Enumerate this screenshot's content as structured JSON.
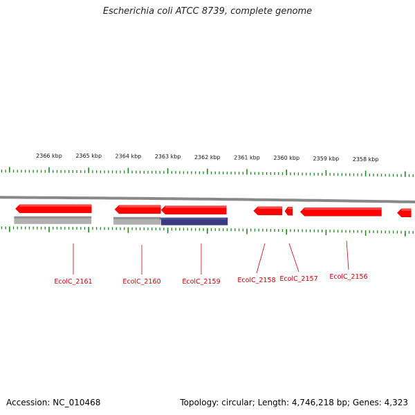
{
  "title": "Escherichia coli ATCC 8739, complete genome",
  "footer": {
    "accession_label": "Accession:",
    "accession": "NC_010468",
    "topology_label": "Topology:",
    "topology": "circular",
    "length_label": "Length:",
    "length": "4,746,218 bp",
    "genes_label": "Genes:",
    "genes": "4,323"
  },
  "colors": {
    "gene_forward": "#ff0000",
    "gene_highlight": "#ff6666",
    "backbone": "#888888",
    "tick": "#1a8a1a",
    "label": "#cc0000",
    "rna_grey": "#b0b0b0",
    "rna_blue": "#3a3a80"
  },
  "scale": {
    "unit": "kbp",
    "ticks": [
      {
        "kbp": 2366,
        "label": "2366 kbp"
      },
      {
        "kbp": 2365,
        "label": "2365 kbp"
      },
      {
        "kbp": 2364,
        "label": "2364 kbp"
      },
      {
        "kbp": 2363,
        "label": "2363 kbp"
      },
      {
        "kbp": 2362,
        "label": "2362 kbp"
      },
      {
        "kbp": 2361,
        "label": "2361 kbp"
      },
      {
        "kbp": 2360,
        "label": "2360 kbp"
      },
      {
        "kbp": 2359,
        "label": "2359 kbp"
      },
      {
        "kbp": 2358,
        "label": "2358 kbp"
      }
    ]
  },
  "genes": [
    {
      "name": "EcolC_2161",
      "start_kbp": 2364.93,
      "end_kbp": 2366.85,
      "strand": "reverse",
      "feature": "grey"
    },
    {
      "name": "EcolC_2160",
      "start_kbp": 2363.18,
      "end_kbp": 2364.34,
      "strand": "reverse",
      "feature": "grey"
    },
    {
      "name": "EcolC_2159",
      "start_kbp": 2361.52,
      "end_kbp": 2363.17,
      "strand": "reverse",
      "feature": "blue"
    },
    {
      "name": "EcolC_2158",
      "start_kbp": 2360.11,
      "end_kbp": 2360.83,
      "strand": "reverse",
      "feature": "none"
    },
    {
      "name": "EcolC_2157",
      "start_kbp": 2359.85,
      "end_kbp": 2360.04,
      "strand": "reverse",
      "feature": "none"
    },
    {
      "name": "EcolC_2156",
      "start_kbp": 2357.6,
      "end_kbp": 2359.65,
      "strand": "reverse",
      "feature": "none"
    },
    {
      "name": "",
      "start_kbp": 2356.85,
      "end_kbp": 2357.2,
      "strand": "reverse",
      "feature": "none"
    }
  ],
  "labels": [
    {
      "gene": "EcolC_2161",
      "text": "EcolC_2161"
    },
    {
      "gene": "EcolC_2160",
      "text": "EcolC_2160"
    },
    {
      "gene": "EcolC_2159",
      "text": "EcolC_2159"
    },
    {
      "gene": "EcolC_2158",
      "text": "EcolC_2158"
    },
    {
      "gene": "EcolC_2157",
      "text": "EcolC_2157"
    },
    {
      "gene": "EcolC_2156",
      "text": "EcolC_2156"
    }
  ]
}
